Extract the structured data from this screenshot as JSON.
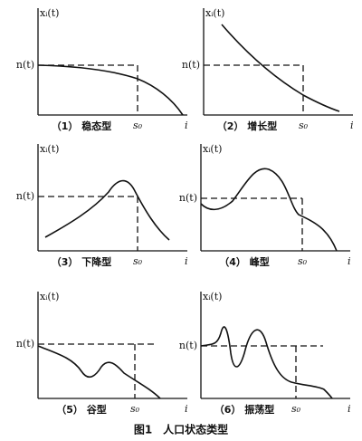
{
  "panels": [
    {
      "y_label": "xᵢ(t)",
      "level_label": "n(t)",
      "s_label": "s₀",
      "x_label": "i",
      "caption": "（1） 稳态型"
    },
    {
      "y_label": "xᵢ(t)",
      "level_label": "n(t)",
      "s_label": "s₀",
      "x_label": "i",
      "caption": "（2） 增长型"
    },
    {
      "y_label": "xᵢ(t)",
      "level_label": "n(t)",
      "s_label": "s₀",
      "x_label": "i",
      "caption": "（3） 下降型"
    },
    {
      "y_label": "xᵢ(t)",
      "level_label": "n(t)",
      "s_label": "s₀",
      "x_label": "i",
      "caption": "（4） 峰型"
    },
    {
      "y_label": "xᵢ(t)",
      "level_label": "n(t)",
      "s_label": "s₀",
      "x_label": "i",
      "caption": "（5） 谷型"
    },
    {
      "y_label": "xᵢ(t)",
      "level_label": "n(t)",
      "s_label": "s₀",
      "x_label": "i",
      "caption": "（6） 振荡型"
    }
  ],
  "figure_caption": "图1　人口状态类型"
}
